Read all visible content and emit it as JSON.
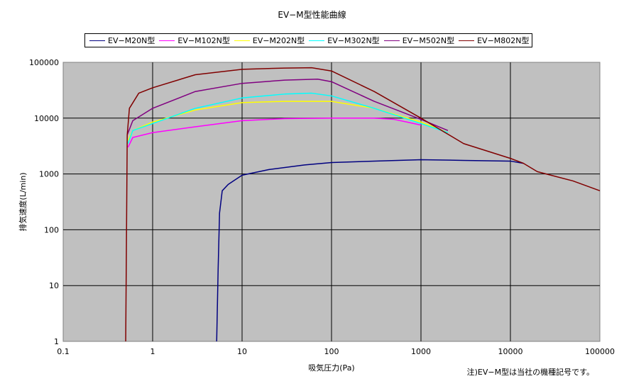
{
  "chart_data": {
    "type": "line",
    "title": "EV−M型性能曲線",
    "xlabel": "吸気圧力(Pa)",
    "ylabel": "排気速度(L/min)",
    "x_scale": "log",
    "y_scale": "log",
    "xlim": [
      0.1,
      100000
    ],
    "ylim": [
      1,
      100000
    ],
    "x_ticks": [
      "0.1",
      "1",
      "10",
      "100",
      "1000",
      "10000",
      "100000"
    ],
    "y_ticks": [
      "1",
      "10",
      "100",
      "1000",
      "10000",
      "100000"
    ],
    "grid": true,
    "legend_position": "top",
    "note": "注)EV−M型は当社の機種記号です。",
    "series": [
      {
        "name": "EV−M20N型",
        "color": "#000080",
        "points": [
          [
            5.2,
            1
          ],
          [
            5.4,
            20
          ],
          [
            5.6,
            200
          ],
          [
            6,
            500
          ],
          [
            7,
            650
          ],
          [
            10,
            950
          ],
          [
            20,
            1200
          ],
          [
            50,
            1450
          ],
          [
            100,
            1600
          ],
          [
            300,
            1700
          ],
          [
            1000,
            1800
          ],
          [
            3000,
            1750
          ],
          [
            10000,
            1700
          ],
          [
            14000,
            1550
          ]
        ]
      },
      {
        "name": "EV−M102N型",
        "color": "#ff00ff",
        "points": [
          [
            0.53,
            3000
          ],
          [
            0.6,
            4500
          ],
          [
            1,
            5500
          ],
          [
            3,
            7000
          ],
          [
            10,
            9000
          ],
          [
            30,
            9800
          ],
          [
            100,
            10000
          ],
          [
            300,
            10000
          ],
          [
            500,
            9500
          ],
          [
            700,
            8500
          ],
          [
            1000,
            7500
          ]
        ]
      },
      {
        "name": "EV−M202N型",
        "color": "#ffff00",
        "points": [
          [
            0.53,
            4000
          ],
          [
            0.6,
            6000
          ],
          [
            1,
            8500
          ],
          [
            3,
            14000
          ],
          [
            10,
            19000
          ],
          [
            30,
            20000
          ],
          [
            100,
            20000
          ],
          [
            300,
            15000
          ],
          [
            1000,
            8500
          ],
          [
            2000,
            5500
          ]
        ]
      },
      {
        "name": "EV−M302N型",
        "color": "#00ffff",
        "points": [
          [
            0.53,
            3500
          ],
          [
            0.6,
            6000
          ],
          [
            1,
            8000
          ],
          [
            3,
            15000
          ],
          [
            10,
            23000
          ],
          [
            30,
            27000
          ],
          [
            60,
            28000
          ],
          [
            100,
            25000
          ],
          [
            300,
            15000
          ],
          [
            1000,
            8000
          ],
          [
            2000,
            5500
          ]
        ]
      },
      {
        "name": "EV−M502N型",
        "color": "#800080",
        "points": [
          [
            0.52,
            5000
          ],
          [
            0.6,
            9000
          ],
          [
            1,
            15000
          ],
          [
            3,
            30000
          ],
          [
            10,
            42000
          ],
          [
            30,
            48000
          ],
          [
            70,
            50000
          ],
          [
            100,
            45000
          ],
          [
            300,
            20000
          ],
          [
            1000,
            9500
          ],
          [
            2000,
            6000
          ]
        ]
      },
      {
        "name": "EV−M802N型",
        "color": "#800000",
        "points": [
          [
            0.5,
            1
          ],
          [
            0.52,
            5000
          ],
          [
            0.55,
            15000
          ],
          [
            0.7,
            28000
          ],
          [
            1,
            35000
          ],
          [
            3,
            60000
          ],
          [
            10,
            75000
          ],
          [
            30,
            79000
          ],
          [
            60,
            80000
          ],
          [
            100,
            70000
          ],
          [
            300,
            30000
          ],
          [
            1000,
            10000
          ],
          [
            3000,
            3500
          ],
          [
            10000,
            1900
          ],
          [
            14000,
            1550
          ],
          [
            20000,
            1100
          ],
          [
            50000,
            750
          ],
          [
            100000,
            500
          ]
        ]
      }
    ]
  }
}
